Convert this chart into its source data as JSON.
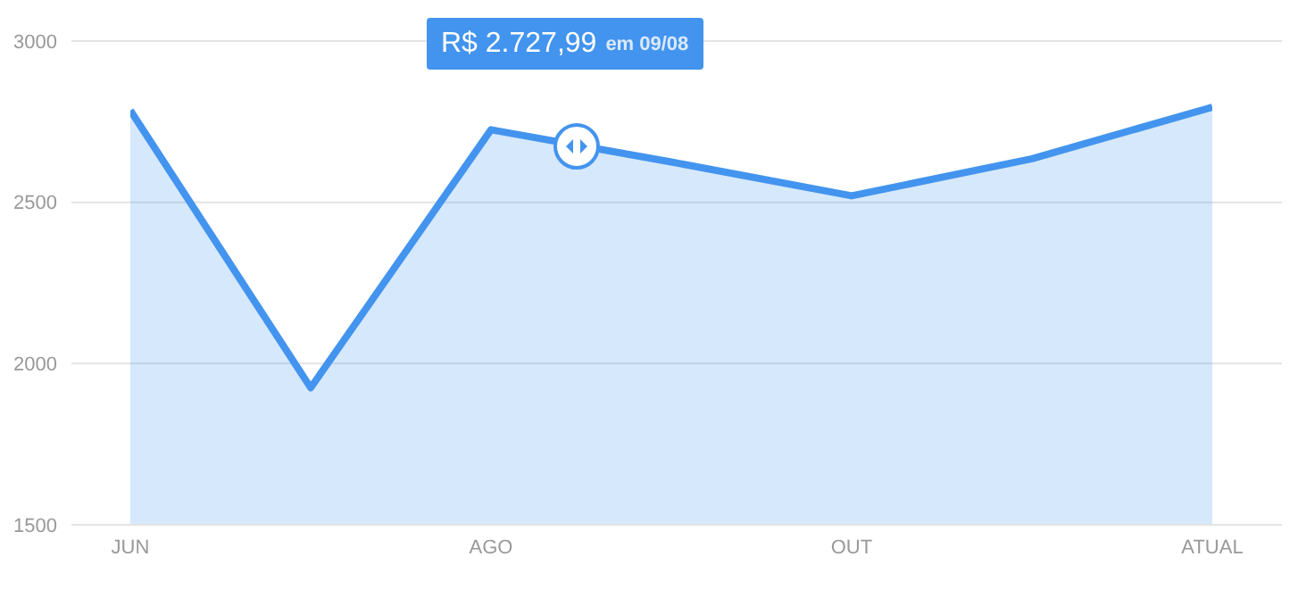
{
  "chart_data": {
    "type": "area",
    "categories": [
      "JUN",
      null,
      "AGO",
      null,
      "OUT",
      null,
      "ATUAL"
    ],
    "series": [
      {
        "color": "#4394ee",
        "values": [
          2785,
          1925,
          2725,
          2625,
          2520,
          2635,
          2795
        ]
      }
    ],
    "ylim": [
      1500,
      3000
    ],
    "yticks": [
      1500,
      2000,
      2500,
      3000
    ],
    "grid": "y",
    "marker": "none",
    "annotations": [
      "R$ 2.727,99",
      "em 09/08"
    ]
  }
}
